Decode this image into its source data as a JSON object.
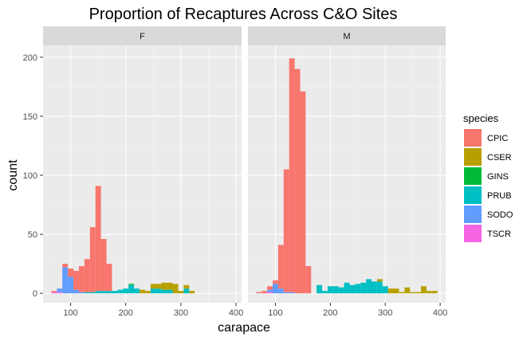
{
  "chart_data": {
    "type": "bar",
    "title": "Proportion of Recaptures Across C&O Sites",
    "xlabel": "carapace",
    "ylabel": "count",
    "xlim": [
      50,
      410
    ],
    "ylim": [
      -8,
      210
    ],
    "x_ticks": [
      100,
      200,
      300,
      400
    ],
    "y_ticks": [
      0,
      50,
      100,
      150,
      200
    ],
    "bin_width": 10,
    "stacked": true,
    "grid": true,
    "legend_title": "species",
    "legend_position": "right",
    "species": [
      {
        "name": "CPIC",
        "color": "#F8766D"
      },
      {
        "name": "CSER",
        "color": "#B79F00"
      },
      {
        "name": "GINS",
        "color": "#00BA38"
      },
      {
        "name": "PRUB",
        "color": "#00BFC4"
      },
      {
        "name": "SODO",
        "color": "#619CFF"
      },
      {
        "name": "TSCR",
        "color": "#F564E3"
      }
    ],
    "facets": [
      {
        "label": "F",
        "bins": [
          {
            "x": 70,
            "stack": {
              "TSCR": 1,
              "CPIC": 1
            }
          },
          {
            "x": 80,
            "stack": {
              "SODO": 3,
              "TSCR": 1
            }
          },
          {
            "x": 90,
            "stack": {
              "SODO": 22,
              "CPIC": 3
            }
          },
          {
            "x": 100,
            "stack": {
              "SODO": 14,
              "CPIC": 7
            }
          },
          {
            "x": 110,
            "stack": {
              "SODO": 3,
              "CPIC": 16
            }
          },
          {
            "x": 120,
            "stack": {
              "SODO": 1,
              "CPIC": 22
            }
          },
          {
            "x": 130,
            "stack": {
              "PRUB": 1,
              "CPIC": 28
            }
          },
          {
            "x": 140,
            "stack": {
              "PRUB": 1,
              "CPIC": 55
            }
          },
          {
            "x": 150,
            "stack": {
              "PRUB": 2,
              "CPIC": 89
            }
          },
          {
            "x": 160,
            "stack": {
              "PRUB": 2,
              "CPIC": 44
            }
          },
          {
            "x": 170,
            "stack": {
              "PRUB": 2,
              "CPIC": 23
            }
          },
          {
            "x": 180,
            "stack": {
              "PRUB": 2
            }
          },
          {
            "x": 190,
            "stack": {
              "PRUB": 3
            }
          },
          {
            "x": 200,
            "stack": {
              "PRUB": 4
            }
          },
          {
            "x": 210,
            "stack": {
              "GINS": 1,
              "PRUB": 7
            }
          },
          {
            "x": 220,
            "stack": {
              "PRUB": 4
            }
          },
          {
            "x": 230,
            "stack": {
              "CSER": 3
            }
          },
          {
            "x": 240,
            "stack": {
              "CSER": 2
            }
          },
          {
            "x": 250,
            "stack": {
              "PRUB": 4,
              "CSER": 4
            }
          },
          {
            "x": 260,
            "stack": {
              "PRUB": 4,
              "CSER": 4
            }
          },
          {
            "x": 270,
            "stack": {
              "PRUB": 3,
              "CSER": 6
            }
          },
          {
            "x": 280,
            "stack": {
              "PRUB": 3,
              "CSER": 6
            }
          },
          {
            "x": 290,
            "stack": {
              "CSER": 8
            }
          },
          {
            "x": 300,
            "stack": {
              "CSER": 2
            }
          },
          {
            "x": 310,
            "stack": {
              "PRUB": 4,
              "CSER": 3
            }
          },
          {
            "x": 320,
            "stack": {
              "CSER": 2
            }
          }
        ]
      },
      {
        "label": "M",
        "bins": [
          {
            "x": 70,
            "stack": {
              "CPIC": 1
            }
          },
          {
            "x": 80,
            "stack": {
              "CPIC": 2
            }
          },
          {
            "x": 90,
            "stack": {
              "SODO": 2,
              "TSCR": 1,
              "CPIC": 3
            }
          },
          {
            "x": 100,
            "stack": {
              "SODO": 8,
              "CPIC": 3
            }
          },
          {
            "x": 110,
            "stack": {
              "SODO": 4,
              "CPIC": 37
            }
          },
          {
            "x": 120,
            "stack": {
              "SODO": 1,
              "CPIC": 104
            }
          },
          {
            "x": 130,
            "stack": {
              "SODO": 1,
              "CPIC": 198
            }
          },
          {
            "x": 140,
            "stack": {
              "CPIC": 190
            }
          },
          {
            "x": 150,
            "stack": {
              "CPIC": 171
            }
          },
          {
            "x": 160,
            "stack": {
              "CPIC": 23
            }
          },
          {
            "x": 170,
            "stack": {}
          },
          {
            "x": 180,
            "stack": {
              "PRUB": 7
            }
          },
          {
            "x": 190,
            "stack": {
              "PRUB": 2
            }
          },
          {
            "x": 200,
            "stack": {
              "PRUB": 6
            }
          },
          {
            "x": 210,
            "stack": {
              "PRUB": 6
            }
          },
          {
            "x": 220,
            "stack": {
              "PRUB": 5
            }
          },
          {
            "x": 230,
            "stack": {
              "PRUB": 9
            }
          },
          {
            "x": 240,
            "stack": {
              "PRUB": 7
            }
          },
          {
            "x": 250,
            "stack": {
              "PRUB": 8
            }
          },
          {
            "x": 260,
            "stack": {
              "PRUB": 9
            }
          },
          {
            "x": 270,
            "stack": {
              "PRUB": 12
            }
          },
          {
            "x": 280,
            "stack": {
              "PRUB": 10
            }
          },
          {
            "x": 290,
            "stack": {
              "PRUB": 10,
              "CSER": 2
            }
          },
          {
            "x": 300,
            "stack": {
              "PRUB": 6
            }
          },
          {
            "x": 310,
            "stack": {
              "CSER": 4
            }
          },
          {
            "x": 320,
            "stack": {
              "CSER": 4
            }
          },
          {
            "x": 330,
            "stack": {
              "CSER": 1
            }
          },
          {
            "x": 340,
            "stack": {
              "CSER": 5
            }
          },
          {
            "x": 350,
            "stack": {
              "CSER": 1
            }
          },
          {
            "x": 360,
            "stack": {
              "CSER": 1
            }
          },
          {
            "x": 370,
            "stack": {
              "CSER": 6
            }
          },
          {
            "x": 380,
            "stack": {
              "CSER": 2
            }
          },
          {
            "x": 390,
            "stack": {
              "CSER": 2
            }
          }
        ]
      }
    ]
  }
}
